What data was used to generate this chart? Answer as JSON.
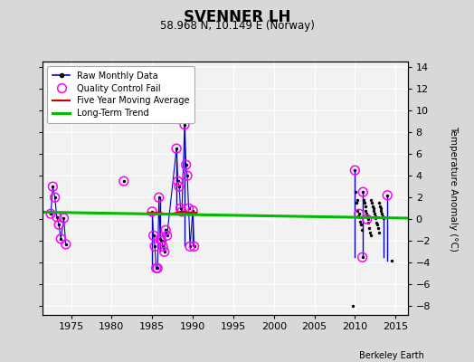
{
  "title": "SVENNER LH",
  "subtitle": "58.968 N, 10.149 E (Norway)",
  "ylabel": "Temperature Anomaly (°C)",
  "attribution": "Berkeley Earth",
  "xlim": [
    1971.5,
    2016.5
  ],
  "ylim": [
    -8.8,
    14.5
  ],
  "yticks": [
    -8,
    -6,
    -4,
    -2,
    0,
    2,
    4,
    6,
    8,
    10,
    12,
    14
  ],
  "xticks": [
    1975,
    1980,
    1985,
    1990,
    1995,
    2000,
    2005,
    2010,
    2015
  ],
  "bg_color": "#d8d8d8",
  "plot_bg_color": "#f2f2f2",
  "line_color": "#0000cc",
  "dot_color": "#000000",
  "qc_color": "#ff00ff",
  "moving_avg_color": "#cc0000",
  "trend_color": "#00bb00",
  "trend_x": [
    1971.5,
    2016.5
  ],
  "trend_y": [
    0.65,
    0.1
  ],
  "early_x": [
    1972.5,
    1972.75,
    1973.0,
    1973.25,
    1973.5,
    1973.75,
    1974.1,
    1974.35
  ],
  "early_y": [
    0.5,
    3.0,
    2.0,
    0.2,
    -0.5,
    -1.8,
    0.1,
    -2.3
  ],
  "early_qc": [
    true,
    true,
    true,
    true,
    true,
    true,
    true,
    true
  ],
  "lone_x": [
    1981.5
  ],
  "lone_y": [
    3.5
  ],
  "lone_qc": [
    true
  ],
  "mid_x": [
    1985.0,
    1985.17,
    1985.33,
    1985.5,
    1985.67,
    1985.83,
    1986.0,
    1986.17,
    1986.33,
    1986.5,
    1986.67,
    1986.83,
    1988.0,
    1988.17,
    1988.33,
    1988.5,
    1988.67,
    1989.0,
    1989.17,
    1989.33,
    1989.5,
    1989.67,
    1990.0,
    1990.17
  ],
  "mid_y": [
    0.7,
    -1.5,
    -2.5,
    -4.5,
    -4.5,
    2.0,
    -1.8,
    -2.0,
    -2.5,
    -3.0,
    -1.0,
    -1.5,
    6.5,
    3.5,
    3.0,
    1.0,
    0.7,
    8.7,
    5.0,
    4.0,
    1.0,
    -2.5,
    0.8,
    -2.5
  ],
  "mid_qc": [
    true,
    true,
    true,
    true,
    true,
    true,
    true,
    true,
    true,
    true,
    true,
    true,
    true,
    true,
    true,
    true,
    true,
    true,
    true,
    true,
    true,
    true,
    true,
    true
  ],
  "mid_vlines": [
    [
      1985.0,
      0.7,
      -4.5
    ],
    [
      1986.0,
      2.0,
      -3.0
    ],
    [
      1988.0,
      6.5,
      0.7
    ],
    [
      1989.0,
      8.7,
      -2.5
    ],
    [
      1990.0,
      0.8,
      -2.5
    ]
  ],
  "late_x": [
    2009.75,
    2010.0,
    2010.08,
    2010.17,
    2010.25,
    2010.33,
    2010.42,
    2010.5,
    2010.58,
    2010.67,
    2010.75,
    2010.83,
    2010.92,
    2011.0,
    2011.08,
    2011.17,
    2011.25,
    2011.33,
    2011.42,
    2011.5,
    2011.58,
    2011.67,
    2011.75,
    2011.83,
    2011.92,
    2012.0,
    2012.08,
    2012.17,
    2012.25,
    2012.33,
    2012.42,
    2012.5,
    2012.58,
    2012.67,
    2012.75,
    2012.83,
    2012.92,
    2013.0,
    2013.08,
    2013.17,
    2013.25,
    2013.33,
    2013.42,
    2013.5,
    2014.0,
    2014.5
  ],
  "late_y": [
    -8.0,
    4.5,
    2.5,
    1.5,
    1.8,
    0.8,
    0.3,
    0.5,
    0.2,
    -0.2,
    -0.5,
    -1.0,
    -3.5,
    2.5,
    1.8,
    1.5,
    1.2,
    0.8,
    0.5,
    0.3,
    0.0,
    -0.3,
    -0.8,
    -1.2,
    -1.5,
    1.8,
    1.5,
    1.2,
    1.0,
    0.8,
    0.5,
    0.3,
    0.1,
    -0.3,
    -0.5,
    -0.8,
    -1.2,
    1.5,
    1.2,
    1.0,
    0.8,
    0.5,
    0.3,
    0.1,
    2.2,
    -3.8
  ],
  "late_vlines": [
    [
      2010.0,
      4.5,
      -3.5
    ],
    [
      2011.0,
      2.5,
      -3.5
    ],
    [
      2013.5,
      0.1,
      -3.5
    ],
    [
      2014.0,
      2.2,
      -3.8
    ]
  ],
  "late_qc_x": [
    2010.0,
    2010.5,
    2010.92,
    2011.0,
    2011.5,
    2014.0
  ],
  "late_qc_y": [
    4.5,
    0.5,
    -3.5,
    2.5,
    0.0,
    2.2
  ],
  "ma_x": [
    1984.5,
    1985.0,
    1985.5,
    1986.0,
    1986.5,
    1987.0,
    1987.5,
    1988.0,
    1988.5,
    1989.0,
    1989.5,
    1990.0,
    1990.5
  ],
  "ma_y": [
    0.6,
    0.6,
    0.6,
    0.6,
    0.5,
    0.5,
    0.5,
    0.6,
    0.7,
    0.7,
    0.6,
    0.6,
    0.6
  ]
}
